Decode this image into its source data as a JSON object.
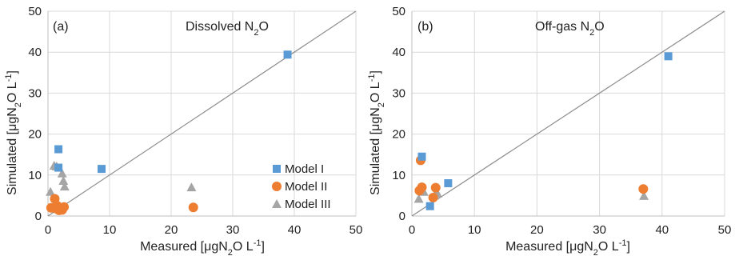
{
  "chart_data": [
    {
      "type": "scatter",
      "panel_label": "(a)",
      "title": "Dissolved N",
      "title_sub": "2",
      "title_end": "O",
      "xlabel_pre": "Measured [",
      "xlabel_mu": "μ",
      "xlabel_mid": "gN",
      "xlabel_sub": "2",
      "xlabel_post": "O L",
      "xlabel_sup": "-1",
      "xlabel_close": "]",
      "ylabel_pre": "Simulated  [",
      "ylabel_mu": "μ",
      "ylabel_mid": "gN",
      "ylabel_sub": "2",
      "ylabel_post": "O L",
      "ylabel_sup": "-1",
      "ylabel_close": "]",
      "xlim": [
        0,
        50
      ],
      "ylim": [
        0,
        50
      ],
      "xticks": [
        "0",
        "10",
        "20",
        "30",
        "40",
        "50"
      ],
      "yticks": [
        "0",
        "10",
        "20",
        "30",
        "40",
        "50"
      ],
      "grid": true,
      "reference_line": "1:1",
      "legend_position": "bottom-right",
      "series": [
        {
          "name": "Model I",
          "marker": "square",
          "color": "#5b9bd5",
          "x": [
            1.7,
            1.7,
            8.7,
            38.9
          ],
          "y": [
            16.3,
            11.8,
            11.5,
            39.4
          ]
        },
        {
          "name": "Model II",
          "marker": "circle",
          "color": "#ed7d31",
          "x": [
            0.5,
            1.1,
            1.3,
            1.5,
            1.8,
            2.1,
            2.3,
            2.6,
            23.6
          ],
          "y": [
            2.0,
            4.2,
            1.8,
            2.5,
            1.4,
            1.9,
            1.5,
            2.2,
            2.1
          ]
        },
        {
          "name": "Model III",
          "marker": "triangle",
          "color": "#a5a5a5",
          "x": [
            0.4,
            1.0,
            1.4,
            2.3,
            2.5,
            2.7,
            23.3
          ],
          "y": [
            5.9,
            12.3,
            12.1,
            10.4,
            8.6,
            7.2,
            7.0
          ]
        }
      ]
    },
    {
      "type": "scatter",
      "panel_label": "(b)",
      "title": "Off-gas N",
      "title_sub": "2",
      "title_end": "O",
      "xlabel_pre": "Measured [",
      "xlabel_mu": "μ",
      "xlabel_mid": "gN",
      "xlabel_sub": "2",
      "xlabel_post": "O L",
      "xlabel_sup": "-1",
      "xlabel_close": "]",
      "ylabel_pre": "Simulated  [",
      "ylabel_mu": "μ",
      "ylabel_mid": "gN",
      "ylabel_sub": "2",
      "ylabel_post": "O L",
      "ylabel_sup": "-1",
      "ylabel_close": "]",
      "xlim": [
        0,
        50
      ],
      "ylim": [
        0,
        50
      ],
      "xticks": [
        "0",
        "10",
        "20",
        "30",
        "40",
        "50"
      ],
      "yticks": [
        "0",
        "10",
        "20",
        "30",
        "40",
        "50"
      ],
      "grid": true,
      "reference_line": "1:1",
      "series": [
        {
          "name": "Model I",
          "marker": "square",
          "color": "#5b9bd5",
          "x": [
            1.6,
            2.9,
            5.8,
            41.0
          ],
          "y": [
            14.5,
            2.4,
            8.0,
            39.0
          ]
        },
        {
          "name": "Model II",
          "marker": "circle",
          "color": "#ed7d31",
          "x": [
            1.4,
            1.6,
            1.2,
            3.4,
            3.8,
            37.0
          ],
          "y": [
            13.6,
            7.0,
            6.2,
            4.5,
            6.9,
            6.6
          ]
        },
        {
          "name": "Model III",
          "marker": "triangle",
          "color": "#a5a5a5",
          "x": [
            1.1,
            1.9,
            3.6,
            4.1,
            37.1
          ],
          "y": [
            4.2,
            5.9,
            5.0,
            5.5,
            4.9
          ]
        }
      ]
    }
  ]
}
